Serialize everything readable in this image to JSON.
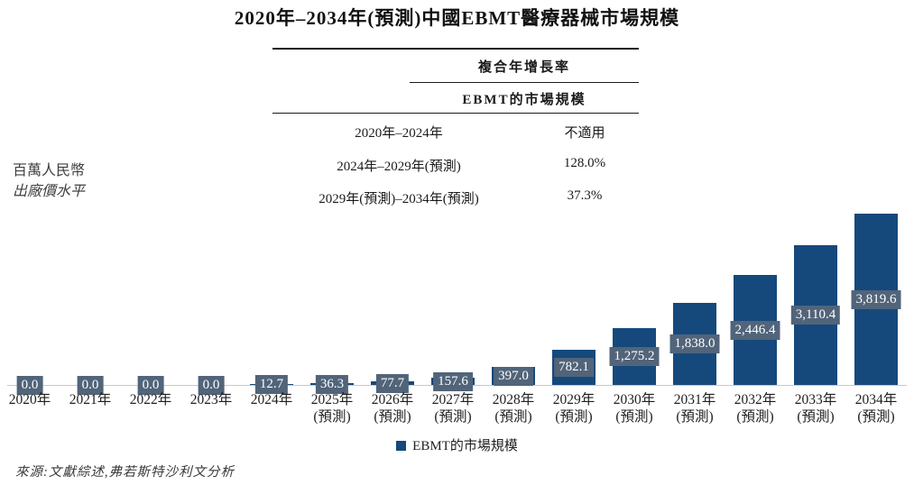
{
  "title": "2020年–2034年(預測)中國EBMT醫療器械市場規模",
  "unit_note": {
    "line1": "百萬人民幣",
    "line2": "出廠價水平"
  },
  "table": {
    "header": "複合年增長率",
    "subheader": "EBMT的市場規模",
    "rows": [
      {
        "period": "2020年–2024年",
        "value": "不適用"
      },
      {
        "period": "2024年–2029年(預測)",
        "value": "128.0%"
      },
      {
        "period": "2029年(預測)–2034年(預測)",
        "value": "37.3%"
      }
    ]
  },
  "chart_data": {
    "type": "bar",
    "title": "2020年–2034年(預測)中國EBMT醫療器械市場規模",
    "ylabel": "百萬人民幣(出廠價水平)",
    "categories": [
      "2020年",
      "2021年",
      "2022年",
      "2023年",
      "2024年",
      "2025年",
      "2026年",
      "2027年",
      "2028年",
      "2029年",
      "2030年",
      "2031年",
      "2032年",
      "2033年",
      "2034年"
    ],
    "category_suffixes": [
      "",
      "",
      "",
      "",
      "",
      "(預測)",
      "(預測)",
      "(預測)",
      "(預測)",
      "(預測)",
      "(預測)",
      "(預測)",
      "(預測)",
      "(預測)",
      "(預測)"
    ],
    "values": [
      0.0,
      0.0,
      0.0,
      0.0,
      12.7,
      36.3,
      77.7,
      157.6,
      397.0,
      782.1,
      1275.2,
      1838.0,
      2446.4,
      3110.4,
      3819.6
    ],
    "value_labels": [
      "0.0",
      "0.0",
      "0.0",
      "0.0",
      "12.7",
      "36.3",
      "77.7",
      "157.6",
      "397.0",
      "782.1",
      "1,275.2",
      "1,838.0",
      "2,446.4",
      "3,110.4",
      "3,819.6"
    ],
    "legend_label": "EBMT的市場規模",
    "legend_position": "bottom",
    "grid": false,
    "ylim": [
      0,
      3900
    ],
    "bar_color": "#15497C",
    "value_box_color": "#51647A",
    "value_text_color": "#FFFFFF"
  },
  "source": "來源:文獻綜述,弗若斯特沙利文分析"
}
